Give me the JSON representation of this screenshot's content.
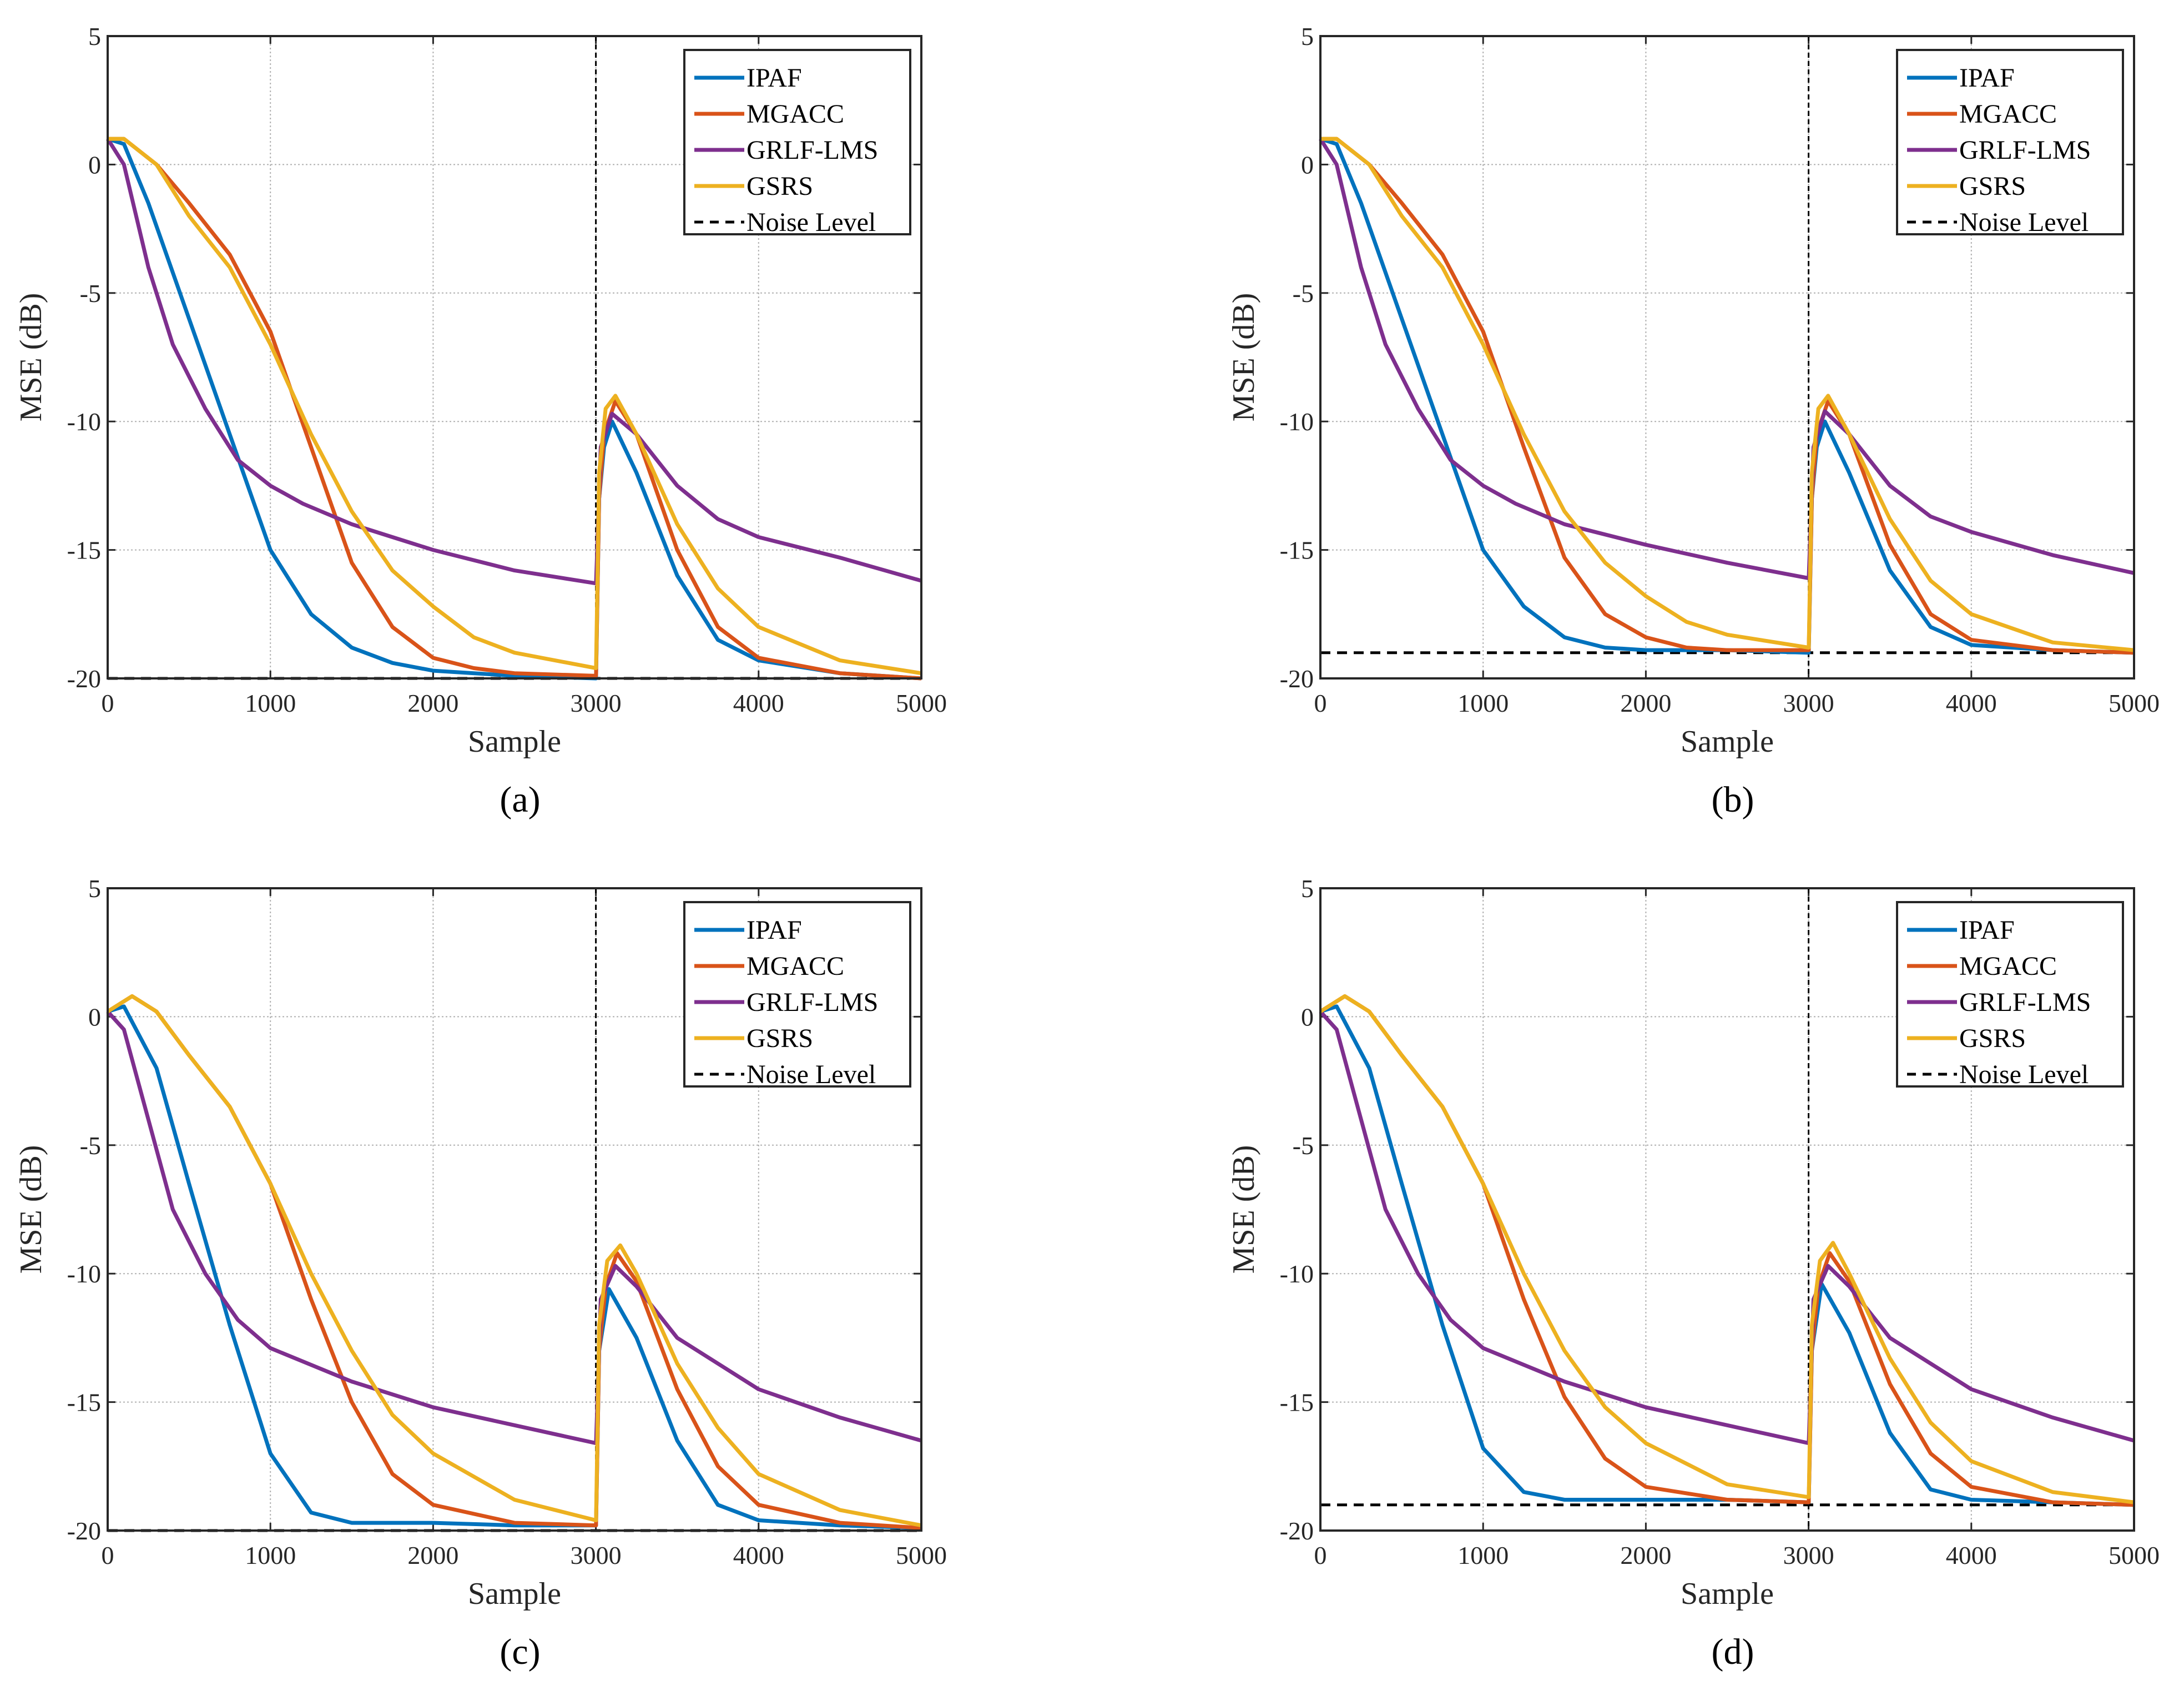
{
  "chart_data": [
    {
      "type": "line",
      "caption": "(a)",
      "xlabel": "Sample",
      "ylabel": "MSE (dB)",
      "xlim": [
        0,
        5000
      ],
      "ylim": [
        -20,
        5
      ],
      "xticks": [
        0,
        1000,
        2000,
        3000,
        4000,
        5000
      ],
      "yticks": [
        -20,
        -15,
        -10,
        -5,
        0,
        5
      ],
      "grid": true,
      "legend_position": "top-right",
      "change_point": 3000,
      "noise_level": -20,
      "series": [
        {
          "name": "IPAF",
          "color": "#0072BD",
          "x": [
            0,
            100,
            250,
            500,
            750,
            1000,
            1250,
            1500,
            1750,
            2000,
            2500,
            3000,
            3001,
            3020,
            3050,
            3100,
            3250,
            3500,
            3750,
            4000,
            4500,
            5000
          ],
          "y": [
            1,
            0.8,
            -1.5,
            -6,
            -10.5,
            -15,
            -17.5,
            -18.8,
            -19.4,
            -19.7,
            -19.9,
            -20,
            -20,
            -13,
            -11,
            -10,
            -12,
            -16,
            -18.5,
            -19.3,
            -19.8,
            -20
          ]
        },
        {
          "name": "MGACC",
          "color": "#D95319",
          "x": [
            0,
            100,
            300,
            500,
            750,
            1000,
            1250,
            1500,
            1750,
            2000,
            2250,
            2500,
            3000,
            3001,
            3020,
            3050,
            3120,
            3250,
            3500,
            3750,
            4000,
            4500,
            5000
          ],
          "y": [
            1,
            1,
            0,
            -1.5,
            -3.5,
            -6.5,
            -11,
            -15.5,
            -18,
            -19.2,
            -19.6,
            -19.8,
            -19.9,
            -19.9,
            -13,
            -10.5,
            -9.2,
            -10.5,
            -15,
            -18,
            -19.2,
            -19.8,
            -20
          ]
        },
        {
          "name": "GRLF-LMS",
          "color": "#7E2F8E",
          "x": [
            0,
            100,
            250,
            400,
            600,
            800,
            1000,
            1200,
            1500,
            1750,
            2000,
            2500,
            3000,
            3001,
            3030,
            3100,
            3250,
            3500,
            3750,
            4000,
            4500,
            5000
          ],
          "y": [
            1,
            0,
            -4,
            -7,
            -9.5,
            -11.5,
            -12.5,
            -13.2,
            -14,
            -14.5,
            -15,
            -15.8,
            -16.3,
            -16.3,
            -11,
            -9.7,
            -10.5,
            -12.5,
            -13.8,
            -14.5,
            -15.3,
            -16.2
          ]
        },
        {
          "name": "GSRS",
          "color": "#EDB120",
          "x": [
            0,
            100,
            300,
            500,
            750,
            1000,
            1250,
            1500,
            1750,
            2000,
            2250,
            2500,
            3000,
            3001,
            3020,
            3060,
            3120,
            3250,
            3500,
            3750,
            4000,
            4500,
            5000
          ],
          "y": [
            1,
            1,
            0,
            -2,
            -4,
            -7,
            -10.5,
            -13.5,
            -15.8,
            -17.2,
            -18.4,
            -19,
            -19.6,
            -19.6,
            -12,
            -9.5,
            -9,
            -10.5,
            -14,
            -16.5,
            -18,
            -19.3,
            -19.8
          ]
        }
      ],
      "legend": [
        "IPAF",
        "MGACC",
        "GRLF-LMS",
        "GSRS",
        "Noise Level"
      ]
    },
    {
      "type": "line",
      "caption": "(b)",
      "xlabel": "Sample",
      "ylabel": "MSE (dB)",
      "xlim": [
        0,
        5000
      ],
      "ylim": [
        -20,
        5
      ],
      "xticks": [
        0,
        1000,
        2000,
        3000,
        4000,
        5000
      ],
      "yticks": [
        -20,
        -15,
        -10,
        -5,
        0,
        5
      ],
      "grid": true,
      "legend_position": "top-right",
      "change_point": 3000,
      "noise_level": -19,
      "series": [
        {
          "name": "IPAF",
          "color": "#0072BD",
          "x": [
            0,
            100,
            250,
            500,
            750,
            1000,
            1250,
            1500,
            1750,
            2000,
            2500,
            3000,
            3001,
            3020,
            3050,
            3100,
            3250,
            3500,
            3750,
            4000,
            4500,
            5000
          ],
          "y": [
            1,
            0.8,
            -1.5,
            -6,
            -10.5,
            -15,
            -17.2,
            -18.4,
            -18.8,
            -18.9,
            -18.9,
            -19,
            -19,
            -13,
            -11,
            -10,
            -12,
            -15.8,
            -18,
            -18.7,
            -18.9,
            -19
          ]
        },
        {
          "name": "MGACC",
          "color": "#D95319",
          "x": [
            0,
            100,
            300,
            500,
            750,
            1000,
            1250,
            1500,
            1750,
            2000,
            2250,
            2500,
            3000,
            3001,
            3020,
            3050,
            3120,
            3250,
            3500,
            3750,
            4000,
            4500,
            5000
          ],
          "y": [
            1,
            1,
            0,
            -1.5,
            -3.5,
            -6.5,
            -11,
            -15.3,
            -17.5,
            -18.4,
            -18.8,
            -18.9,
            -18.9,
            -18.9,
            -13,
            -10.5,
            -9.2,
            -10.5,
            -14.8,
            -17.5,
            -18.5,
            -18.9,
            -19
          ]
        },
        {
          "name": "GRLF-LMS",
          "color": "#7E2F8E",
          "x": [
            0,
            100,
            250,
            400,
            600,
            800,
            1000,
            1200,
            1500,
            1750,
            2000,
            2500,
            3000,
            3001,
            3030,
            3100,
            3250,
            3500,
            3750,
            4000,
            4500,
            5000
          ],
          "y": [
            1,
            0,
            -4,
            -7,
            -9.5,
            -11.5,
            -12.5,
            -13.2,
            -14,
            -14.4,
            -14.8,
            -15.5,
            -16.1,
            -16.1,
            -11,
            -9.6,
            -10.5,
            -12.5,
            -13.7,
            -14.3,
            -15.2,
            -15.9
          ]
        },
        {
          "name": "GSRS",
          "color": "#EDB120",
          "x": [
            0,
            100,
            300,
            500,
            750,
            1000,
            1250,
            1500,
            1750,
            2000,
            2250,
            2500,
            3000,
            3001,
            3020,
            3060,
            3120,
            3250,
            3500,
            3750,
            4000,
            4500,
            5000
          ],
          "y": [
            1,
            1,
            0,
            -2,
            -4,
            -7,
            -10.5,
            -13.5,
            -15.5,
            -16.8,
            -17.8,
            -18.3,
            -18.8,
            -18.8,
            -12,
            -9.5,
            -9,
            -10.5,
            -13.8,
            -16.2,
            -17.5,
            -18.6,
            -18.9
          ]
        }
      ],
      "legend": [
        "IPAF",
        "MGACC",
        "GRLF-LMS",
        "GSRS",
        "Noise Level"
      ]
    },
    {
      "type": "line",
      "caption": "(c)",
      "xlabel": "Sample",
      "ylabel": "MSE (dB)",
      "xlim": [
        0,
        5000
      ],
      "ylim": [
        -20,
        5
      ],
      "xticks": [
        0,
        1000,
        2000,
        3000,
        4000,
        5000
      ],
      "yticks": [
        -20,
        -15,
        -10,
        -5,
        0,
        5
      ],
      "grid": true,
      "legend_position": "top-right",
      "change_point": 3000,
      "noise_level": -20,
      "series": [
        {
          "name": "IPAF",
          "color": "#0072BD",
          "x": [
            0,
            100,
            300,
            500,
            750,
            1000,
            1250,
            1500,
            2000,
            2500,
            3000,
            3001,
            3020,
            3080,
            3250,
            3500,
            3750,
            4000,
            4500,
            5000
          ],
          "y": [
            0.2,
            0.4,
            -2,
            -6.5,
            -12,
            -17,
            -19.3,
            -19.7,
            -19.7,
            -19.8,
            -19.8,
            -19.8,
            -13,
            -10.6,
            -12.5,
            -16.5,
            -19,
            -19.6,
            -19.8,
            -19.9
          ]
        },
        {
          "name": "MGACC",
          "color": "#D95319",
          "x": [
            0,
            150,
            300,
            500,
            750,
            1000,
            1250,
            1500,
            1750,
            2000,
            2500,
            3000,
            3001,
            3020,
            3060,
            3130,
            3250,
            3500,
            3750,
            4000,
            4500,
            5000
          ],
          "y": [
            0.2,
            0.8,
            0.2,
            -1.5,
            -3.5,
            -6.5,
            -11,
            -15,
            -17.8,
            -19,
            -19.7,
            -19.8,
            -19.8,
            -13,
            -10.5,
            -9.2,
            -10.3,
            -14.5,
            -17.5,
            -19,
            -19.7,
            -19.9
          ]
        },
        {
          "name": "GRLF-LMS",
          "color": "#7E2F8E",
          "x": [
            0,
            100,
            250,
            400,
            600,
            800,
            1000,
            1500,
            2000,
            2500,
            3000,
            3001,
            3030,
            3120,
            3250,
            3500,
            4000,
            4500,
            5000
          ],
          "y": [
            0.2,
            -0.5,
            -4,
            -7.5,
            -10,
            -11.8,
            -12.9,
            -14.2,
            -15.2,
            -15.9,
            -16.6,
            -16.6,
            -11,
            -9.7,
            -10.5,
            -12.5,
            -14.5,
            -15.6,
            -16.5
          ]
        },
        {
          "name": "GSRS",
          "color": "#EDB120",
          "x": [
            0,
            150,
            300,
            500,
            750,
            1000,
            1250,
            1500,
            1750,
            2000,
            2500,
            3000,
            3001,
            3020,
            3070,
            3150,
            3250,
            3500,
            3750,
            4000,
            4500,
            5000
          ],
          "y": [
            0.2,
            0.8,
            0.2,
            -1.5,
            -3.5,
            -6.5,
            -10,
            -13,
            -15.5,
            -17,
            -18.8,
            -19.6,
            -19.6,
            -12,
            -9.5,
            -8.9,
            -10,
            -13.5,
            -16,
            -17.8,
            -19.2,
            -19.8
          ]
        }
      ],
      "legend": [
        "IPAF",
        "MGACC",
        "GRLF-LMS",
        "GSRS",
        "Noise Level"
      ]
    },
    {
      "type": "line",
      "caption": "(d)",
      "xlabel": "Sample",
      "ylabel": "MSE (dB)",
      "xlim": [
        0,
        5000
      ],
      "ylim": [
        -20,
        5
      ],
      "xticks": [
        0,
        1000,
        2000,
        3000,
        4000,
        5000
      ],
      "yticks": [
        -20,
        -15,
        -10,
        -5,
        0,
        5
      ],
      "grid": true,
      "legend_position": "top-right",
      "change_point": 3000,
      "noise_level": -19,
      "series": [
        {
          "name": "IPAF",
          "color": "#0072BD",
          "x": [
            0,
            100,
            300,
            500,
            750,
            1000,
            1250,
            1500,
            2000,
            2500,
            3000,
            3001,
            3020,
            3080,
            3250,
            3500,
            3750,
            4000,
            4500,
            5000
          ],
          "y": [
            0.2,
            0.4,
            -2,
            -6.5,
            -12,
            -16.8,
            -18.5,
            -18.8,
            -18.8,
            -18.8,
            -18.9,
            -18.9,
            -13,
            -10.4,
            -12.3,
            -16.2,
            -18.4,
            -18.8,
            -18.9,
            -19
          ]
        },
        {
          "name": "MGACC",
          "color": "#D95319",
          "x": [
            0,
            150,
            300,
            500,
            750,
            1000,
            1250,
            1500,
            1750,
            2000,
            2500,
            3000,
            3001,
            3020,
            3060,
            3130,
            3250,
            3500,
            3750,
            4000,
            4500,
            5000
          ],
          "y": [
            0.2,
            0.8,
            0.2,
            -1.5,
            -3.5,
            -6.5,
            -11,
            -14.8,
            -17.2,
            -18.3,
            -18.8,
            -18.9,
            -18.9,
            -13,
            -10.5,
            -9.2,
            -10.3,
            -14.3,
            -17,
            -18.3,
            -18.9,
            -19
          ]
        },
        {
          "name": "GRLF-LMS",
          "color": "#7E2F8E",
          "x": [
            0,
            100,
            250,
            400,
            600,
            800,
            1000,
            1500,
            2000,
            2500,
            3000,
            3001,
            3030,
            3120,
            3250,
            3500,
            4000,
            4500,
            5000
          ],
          "y": [
            0.2,
            -0.5,
            -4,
            -7.5,
            -10,
            -11.8,
            -12.9,
            -14.2,
            -15.2,
            -15.9,
            -16.6,
            -16.6,
            -11,
            -9.7,
            -10.5,
            -12.5,
            -14.5,
            -15.6,
            -16.5
          ]
        },
        {
          "name": "GSRS",
          "color": "#EDB120",
          "x": [
            0,
            150,
            300,
            500,
            750,
            1000,
            1250,
            1500,
            1750,
            2000,
            2500,
            3000,
            3001,
            3020,
            3070,
            3150,
            3250,
            3500,
            3750,
            4000,
            4500,
            5000
          ],
          "y": [
            0.2,
            0.8,
            0.2,
            -1.5,
            -3.5,
            -6.5,
            -10,
            -13,
            -15.2,
            -16.6,
            -18.2,
            -18.7,
            -18.7,
            -12,
            -9.5,
            -8.8,
            -10,
            -13.3,
            -15.8,
            -17.3,
            -18.5,
            -18.9
          ]
        }
      ],
      "legend": [
        "IPAF",
        "MGACC",
        "GRLF-LMS",
        "GSRS",
        "Noise Level"
      ]
    }
  ]
}
